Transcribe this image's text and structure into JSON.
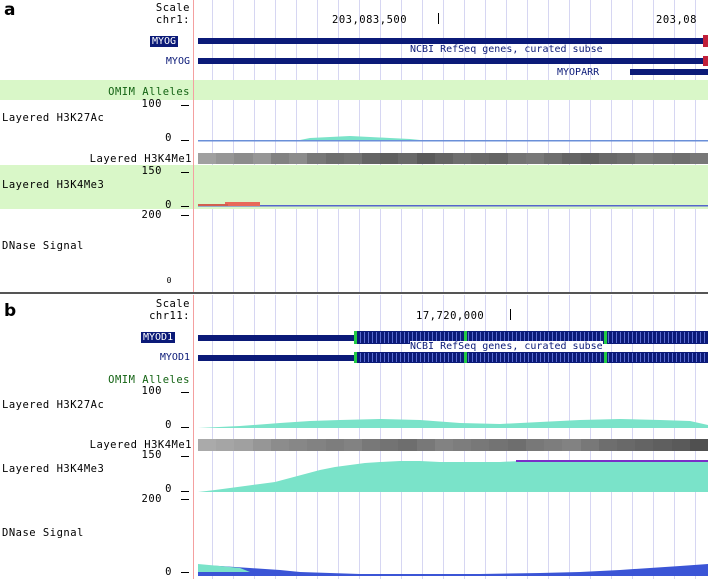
{
  "panel_a": {
    "label": "a",
    "scale_label": "Scale",
    "chrom": "chr1:",
    "coord_main": "203,083,500",
    "coord_right": "203,08",
    "gene1": "MYOG",
    "gene2": "MYOG",
    "refseq_text": "NCBI RefSeq genes, curated subse",
    "gene3": "MYOPARR",
    "omim": "OMIM Alleles",
    "h3k27_max": "100",
    "h3k27_label": "Layered H3K27Ac",
    "h3k27_min": "0",
    "h3k4me1_label": "Layered H3K4Me1",
    "h3k4me3_max": "150",
    "h3k4me3_label": "Layered H3K4Me3",
    "h3k4me3_min": "0",
    "dnase_max": "200",
    "dnase_label": "DNase Signal",
    "dnase_min": "0"
  },
  "panel_b": {
    "label": "b",
    "scale_label": "Scale",
    "chrom": "chr11:",
    "coord_main": "17,720,000",
    "gene1": "MYOD1",
    "gene2": "MYOD1",
    "refseq_text": "NCBI RefSeq genes, curated subse",
    "omim": "OMIM Alleles",
    "h3k27_max": "100",
    "h3k27_label": "Layered H3K27Ac",
    "h3k27_min": "0",
    "h3k4me1_label": "Layered H3K4Me1",
    "h3k4me3_max": "150",
    "h3k4me3_label": "Layered H3K4Me3",
    "h3k4me3_min": "0",
    "dnase_max": "200",
    "dnase_label": "DNase Signal",
    "dnase_min": "0"
  },
  "colors": {
    "gene_navy": "#0b1a78",
    "omim_green": "#d9f7c8",
    "signal_teal": "#7ae3c9",
    "dnase_blue": "#3b55d6",
    "signal_red": "#e86a5a",
    "exon_green": "#22cc44",
    "purple_line": "#7a2fc8"
  }
}
